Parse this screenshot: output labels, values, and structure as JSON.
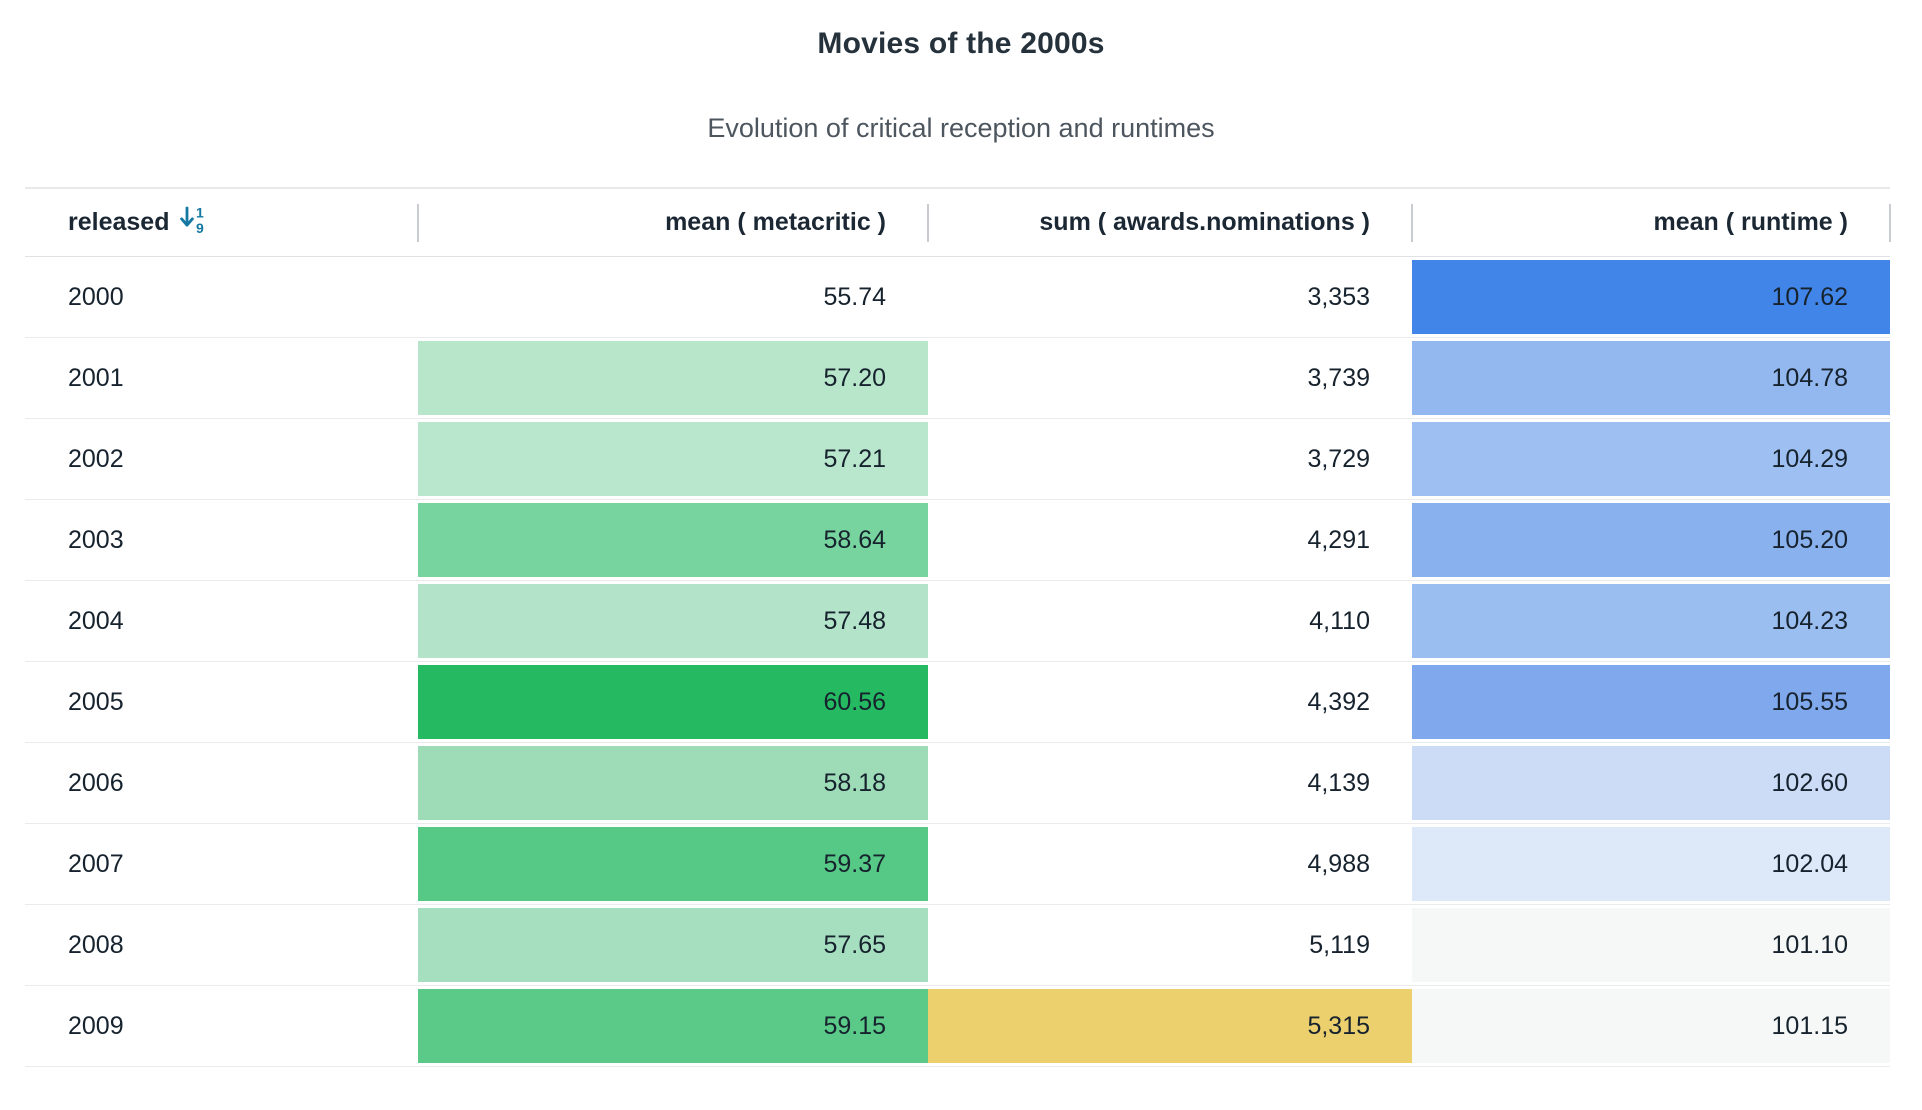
{
  "header": {
    "title": "Movies of the 2000s",
    "subtitle": "Evolution of critical reception and runtimes"
  },
  "table": {
    "columns": [
      {
        "label": "released",
        "align": "left",
        "sorted": true,
        "sort_icon": "sort-ascending-1-9-icon"
      },
      {
        "label": "mean ( metacritic )",
        "align": "right"
      },
      {
        "label": "sum ( awards.nominations )",
        "align": "right"
      },
      {
        "label": "mean ( runtime )",
        "align": "right"
      }
    ],
    "rows": [
      {
        "released": "2000",
        "metacritic": "55.74",
        "awards": "3,353",
        "runtime": "107.62",
        "metacritic_bg": null,
        "awards_bg": null,
        "runtime_bg": "#4285e8"
      },
      {
        "released": "2001",
        "metacritic": "57.20",
        "awards": "3,739",
        "runtime": "104.78",
        "metacritic_bg": "#b7e6cb",
        "awards_bg": null,
        "runtime_bg": "#93b8ef"
      },
      {
        "released": "2002",
        "metacritic": "57.21",
        "awards": "3,729",
        "runtime": "104.29",
        "metacritic_bg": "#b9e7cd",
        "awards_bg": null,
        "runtime_bg": "#9dbff2"
      },
      {
        "released": "2003",
        "metacritic": "58.64",
        "awards": "4,291",
        "runtime": "105.20",
        "metacritic_bg": "#77d49e",
        "awards_bg": null,
        "runtime_bg": "#89b1ee"
      },
      {
        "released": "2004",
        "metacritic": "57.48",
        "awards": "4,110",
        "runtime": "104.23",
        "metacritic_bg": "#b3e4c9",
        "awards_bg": null,
        "runtime_bg": "#9bbef1"
      },
      {
        "released": "2005",
        "metacritic": "60.56",
        "awards": "4,392",
        "runtime": "105.55",
        "metacritic_bg": "#25ba61",
        "awards_bg": null,
        "runtime_bg": "#7fa9ec"
      },
      {
        "released": "2006",
        "metacritic": "58.18",
        "awards": "4,139",
        "runtime": "102.60",
        "metacritic_bg": "#9edcb8",
        "awards_bg": null,
        "runtime_bg": "#cddcf6"
      },
      {
        "released": "2007",
        "metacritic": "59.37",
        "awards": "4,988",
        "runtime": "102.04",
        "metacritic_bg": "#57c987",
        "awards_bg": null,
        "runtime_bg": "#dde9f8"
      },
      {
        "released": "2008",
        "metacritic": "57.65",
        "awards": "5,119",
        "runtime": "101.10",
        "metacritic_bg": "#a6dfbf",
        "awards_bg": null,
        "runtime_bg": "#f5f8f6"
      },
      {
        "released": "2009",
        "metacritic": "59.15",
        "awards": "5,315",
        "runtime": "101.15",
        "metacritic_bg": "#5bca89",
        "awards_bg": "#ecd06e",
        "runtime_bg": "#f5f8f6"
      }
    ]
  },
  "palette": {
    "sort_accent": "#1478a3",
    "title_color": "#25323c",
    "subtitle_color": "#4d565e",
    "text_color": "#16222d",
    "row_divider": "#e9ebed",
    "header_divider": "#dfe2e5",
    "top_border": "#e7e9eb",
    "column_separator": "#c9cdd1"
  },
  "chart_data": {
    "type": "table",
    "title": "Movies of the 2000s",
    "subtitle": "Evolution of critical reception and runtimes",
    "columns": [
      "released",
      "mean ( metacritic )",
      "sum ( awards.nominations )",
      "mean ( runtime )"
    ],
    "sort": {
      "column": "released",
      "direction": "ascending"
    },
    "rows": [
      {
        "released": 2000,
        "mean_metacritic": 55.74,
        "sum_awards_nominations": 3353,
        "mean_runtime": 107.62
      },
      {
        "released": 2001,
        "mean_metacritic": 57.2,
        "sum_awards_nominations": 3739,
        "mean_runtime": 104.78
      },
      {
        "released": 2002,
        "mean_metacritic": 57.21,
        "sum_awards_nominations": 3729,
        "mean_runtime": 104.29
      },
      {
        "released": 2003,
        "mean_metacritic": 58.64,
        "sum_awards_nominations": 4291,
        "mean_runtime": 105.2
      },
      {
        "released": 2004,
        "mean_metacritic": 57.48,
        "sum_awards_nominations": 4110,
        "mean_runtime": 104.23
      },
      {
        "released": 2005,
        "mean_metacritic": 60.56,
        "sum_awards_nominations": 4392,
        "mean_runtime": 105.55
      },
      {
        "released": 2006,
        "mean_metacritic": 58.18,
        "sum_awards_nominations": 4139,
        "mean_runtime": 102.6
      },
      {
        "released": 2007,
        "mean_metacritic": 59.37,
        "sum_awards_nominations": 4988,
        "mean_runtime": 102.04
      },
      {
        "released": 2008,
        "mean_metacritic": 57.65,
        "sum_awards_nominations": 5119,
        "mean_runtime": 101.1
      },
      {
        "released": 2009,
        "mean_metacritic": 59.15,
        "sum_awards_nominations": 5315,
        "mean_runtime": 101.15
      }
    ],
    "color_encoding": {
      "mean_metacritic": "sequential green scale, higher value = more saturated",
      "sum_awards_nominations": "yellow highlight on maximum value (2009)",
      "mean_runtime": "sequential blue scale, higher value = more saturated"
    }
  }
}
